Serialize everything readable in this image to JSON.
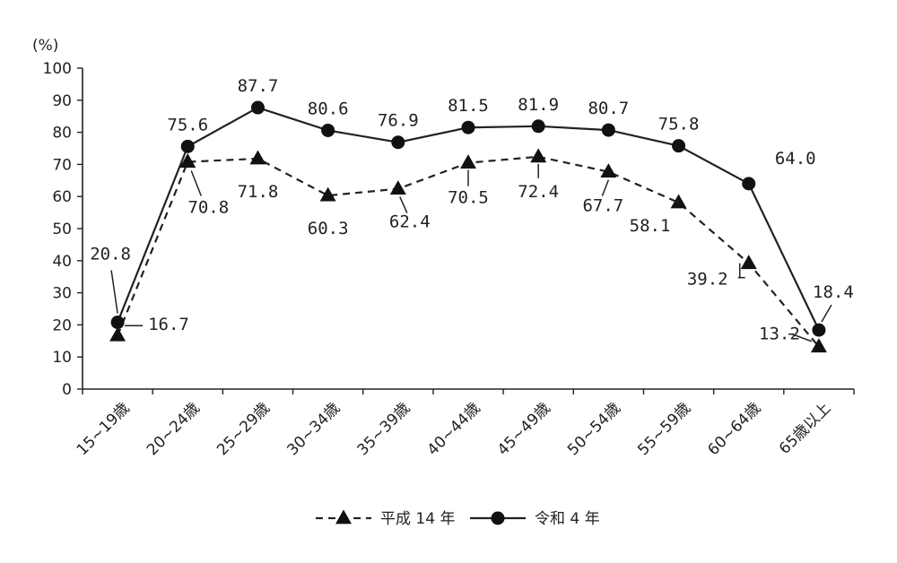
{
  "chart_data": {
    "type": "line",
    "ylabel": "(%)",
    "ylim": [
      0,
      100
    ],
    "yticks": [
      "0",
      "10",
      "20",
      "30",
      "40",
      "50",
      "60",
      "70",
      "80",
      "90",
      "100"
    ],
    "categories": [
      "15~19歳",
      "20~24歳",
      "25~29歳",
      "30~34歳",
      "35~39歳",
      "40~44歳",
      "45~49歳",
      "50~54歳",
      "55~59歳",
      "60~64歳",
      "65歳以上"
    ],
    "series": [
      {
        "name": "平成 14 年",
        "marker": "triangle",
        "style": "dashed",
        "values": [
          16.7,
          70.8,
          71.8,
          60.3,
          62.4,
          70.5,
          72.4,
          67.7,
          58.1,
          39.2,
          13.2
        ],
        "labels": [
          "16.7",
          "70.8",
          "71.8",
          "60.3",
          "62.4",
          "70.5",
          "72.4",
          "67.7",
          "58.1",
          "39.2",
          "13.2"
        ]
      },
      {
        "name": "令和 4 年",
        "marker": "circle",
        "style": "solid",
        "values": [
          20.8,
          75.6,
          87.7,
          80.6,
          76.9,
          81.5,
          81.9,
          80.7,
          75.8,
          64.0,
          18.4
        ],
        "labels": [
          "20.8",
          "75.6",
          "87.7",
          "80.6",
          "76.9",
          "81.5",
          "81.9",
          "80.7",
          "75.8",
          "64.0",
          "18.4"
        ]
      }
    ],
    "legend": "bottom-center",
    "grid": false,
    "colors": {
      "line": "#222222",
      "marker": "#111111"
    }
  }
}
